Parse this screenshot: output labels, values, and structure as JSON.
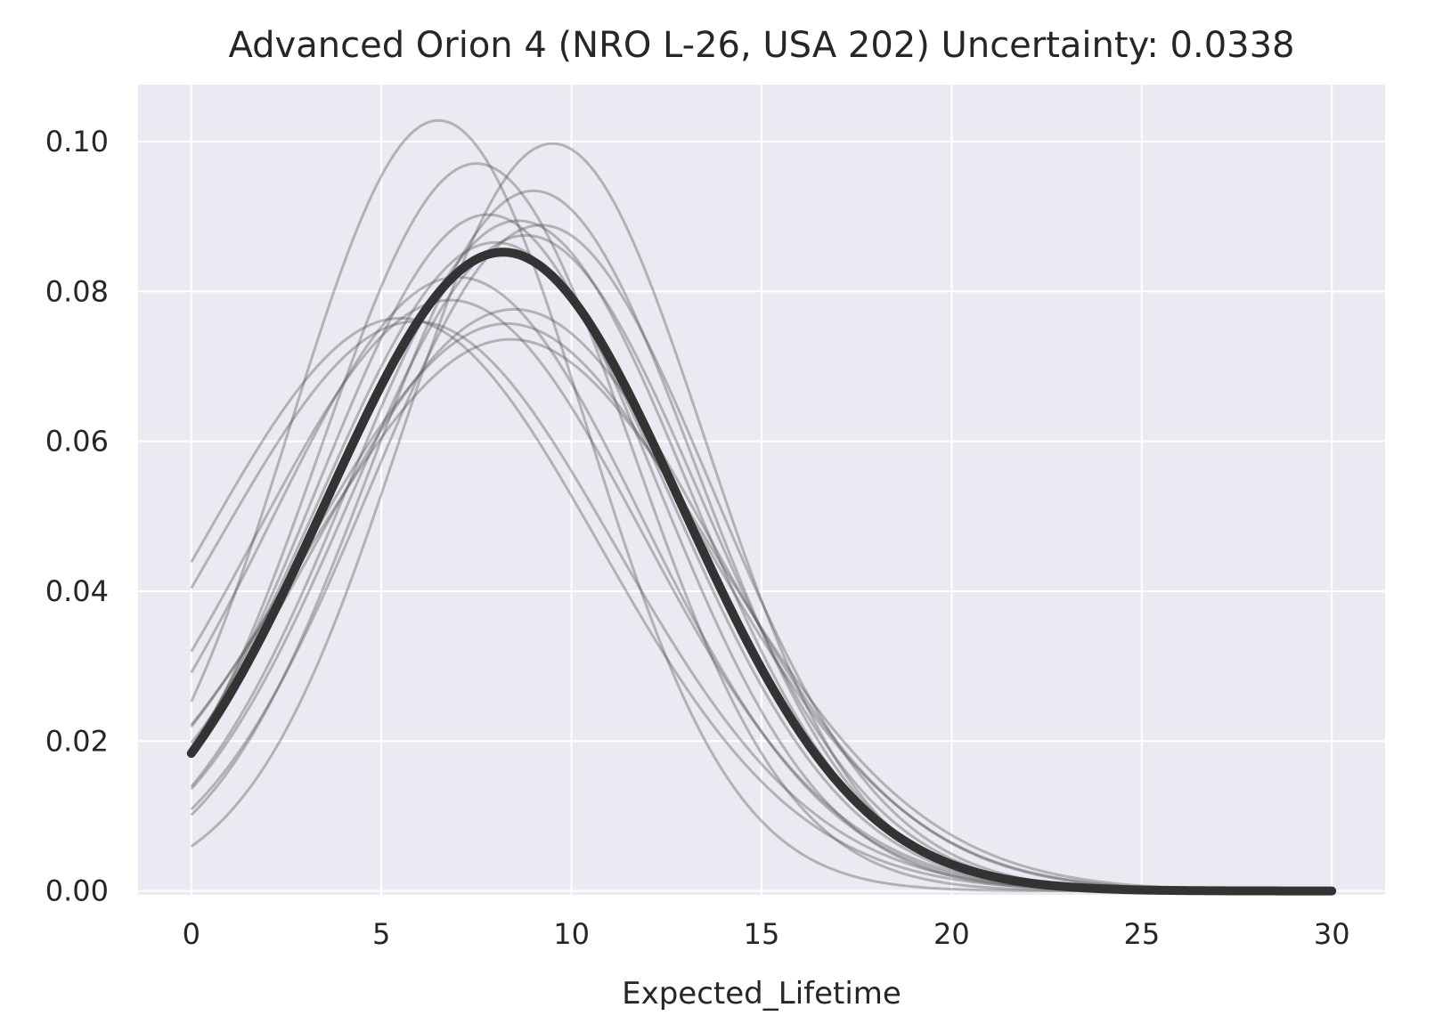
{
  "chart_data": {
    "type": "line",
    "title": "Advanced Orion 4 (NRO L-26, USA 202) Uncertainty: 0.0338",
    "xlabel": "Expected_Lifetime",
    "ylabel": "",
    "xlim": [
      -1.4,
      31.4
    ],
    "ylim": [
      -0.0052,
      1.076
    ],
    "x_ticks": [
      0,
      5,
      10,
      15,
      20,
      25,
      30
    ],
    "x_tick_labels": [
      "0",
      "5",
      "10",
      "15",
      "20",
      "25",
      "30"
    ],
    "y_ticks": [
      0.0,
      0.2,
      0.4,
      0.6,
      0.8,
      1.0
    ],
    "y_tick_labels": [
      "0.00",
      "0.02",
      "0.04",
      "0.06",
      "0.08",
      "0.10"
    ],
    "grid": true,
    "background_color": "#eaeaf2",
    "grid_color": "#ffffff",
    "x_range": [
      0,
      30
    ],
    "curve_model": "gaussian",
    "main_series": {
      "mean": 8.2,
      "sd": 4.68,
      "color": "#333333",
      "value_at_x0": 0.0185,
      "peak_value": 0.0853
    },
    "sample_series": [
      {
        "mean": 6.5,
        "sd": 3.88,
        "color": "#555555"
      },
      {
        "mean": 9.5,
        "sd": 4.0,
        "color": "#555555"
      },
      {
        "mean": 7.5,
        "sd": 4.11,
        "color": "#555555"
      },
      {
        "mean": 9.0,
        "sd": 4.27,
        "color": "#555555"
      },
      {
        "mean": 7.8,
        "sd": 4.42,
        "color": "#555555"
      },
      {
        "mean": 8.6,
        "sd": 4.46,
        "color": "#555555"
      },
      {
        "mean": 9.2,
        "sd": 4.49,
        "color": "#555555"
      },
      {
        "mean": 8.8,
        "sd": 4.56,
        "color": "#555555"
      },
      {
        "mean": 8.0,
        "sd": 4.61,
        "color": "#555555"
      },
      {
        "mean": 7.0,
        "sd": 4.87,
        "color": "#555555"
      },
      {
        "mean": 6.8,
        "sd": 5.06,
        "color": "#555555"
      },
      {
        "mean": 8.5,
        "sd": 5.14,
        "color": "#555555"
      },
      {
        "mean": 8.3,
        "sd": 5.27,
        "color": "#555555"
      },
      {
        "mean": 8.4,
        "sd": 5.42,
        "color": "#555555"
      },
      {
        "mean": 5.5,
        "sd": 5.22,
        "color": "#555555"
      },
      {
        "mean": 5.9,
        "sd": 5.25,
        "color": "#555555"
      }
    ]
  }
}
